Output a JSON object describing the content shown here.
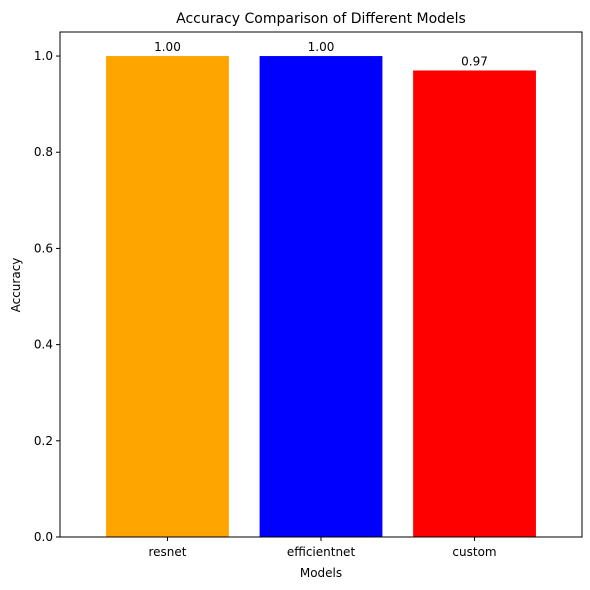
{
  "chart_data": {
    "type": "bar",
    "title": "Accuracy Comparison of Different Models",
    "xlabel": "Models",
    "ylabel": "Accuracy",
    "categories": [
      "resnet",
      "efficientnet",
      "custom"
    ],
    "values": [
      1.0,
      1.0,
      0.97
    ],
    "data_labels": [
      "1.00",
      "1.00",
      "0.97"
    ],
    "colors": [
      "#ffa500",
      "#0000ff",
      "#ff0000"
    ],
    "ylim": [
      0,
      1.05
    ],
    "yticks": [
      0.0,
      0.2,
      0.4,
      0.6,
      0.8,
      1.0
    ],
    "ytick_labels": [
      "0.0",
      "0.2",
      "0.4",
      "0.6",
      "0.8",
      "1.0"
    ],
    "grid": false,
    "legend": "none"
  }
}
